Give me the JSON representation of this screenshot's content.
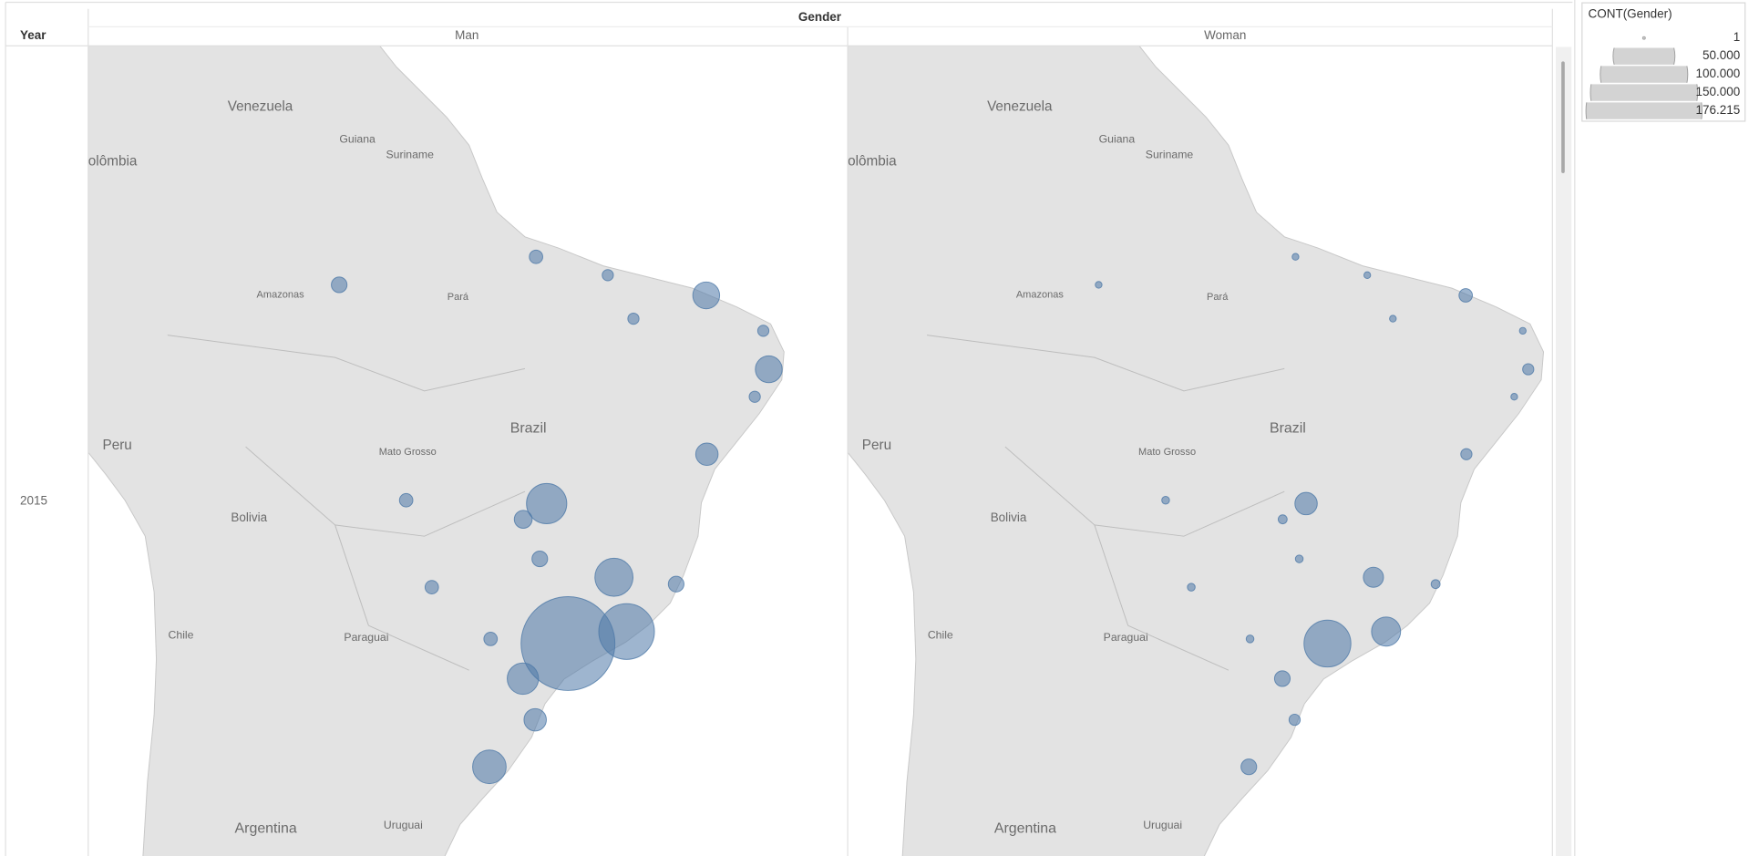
{
  "header": {
    "column_field": "Gender",
    "row_field": "Year",
    "rows": [
      "2015"
    ]
  },
  "chart_data": {
    "type": "bubble_map",
    "color": "#4e79a7",
    "map_labels": [
      "Venezuela",
      "olômbia",
      "Guiana",
      "Suriname",
      "Amazonas",
      "Pará",
      "Brazil",
      "Peru",
      "Mato Grosso",
      "Bolivia",
      "Chile",
      "Paraguai",
      "Argentina",
      "Uruguai"
    ],
    "series": [
      {
        "name": "Man",
        "lon": [
          -46.63,
          -43.2,
          -43.94,
          -47.88,
          -49.25,
          -38.54,
          -34.88,
          -38.5,
          -49.27,
          -51.23,
          -48.55,
          -60.02,
          -48.5,
          -54.6,
          -56.1,
          -40.3,
          -48.28,
          -35.2,
          -44.3,
          -42.8,
          -51.16,
          -35.7
        ],
        "lat": [
          -23.55,
          -22.9,
          -19.92,
          -15.79,
          -16.68,
          -3.72,
          -8.05,
          -12.97,
          -25.43,
          -30.03,
          -27.6,
          -3.1,
          -1.45,
          -20.47,
          -15.6,
          -20.3,
          -18.9,
          -5.8,
          -2.53,
          -5.09,
          -23.3,
          -9.65
        ],
        "values": [
          176215,
          62000,
          29000,
          32500,
          6400,
          14400,
          14400,
          10000,
          19600,
          22500,
          10000,
          4900,
          3600,
          3600,
          3600,
          4900,
          4900,
          2500,
          2500,
          2500,
          3600,
          2500
        ]
      },
      {
        "name": "Woman",
        "lon": [
          -46.63,
          -43.2,
          -43.94,
          -47.88,
          -49.25,
          -38.54,
          -34.88,
          -38.5,
          -49.27,
          -51.23,
          -48.55,
          -60.02,
          -48.5,
          -54.6,
          -56.1,
          -40.3,
          -48.28,
          -35.2,
          -44.3,
          -42.8,
          -51.16,
          -35.7
        ],
        "lat": [
          -23.55,
          -22.9,
          -19.92,
          -15.79,
          -16.68,
          -3.72,
          -8.05,
          -12.97,
          -25.43,
          -30.03,
          -27.6,
          -3.1,
          -1.45,
          -20.47,
          -15.6,
          -20.3,
          -18.9,
          -5.8,
          -2.53,
          -5.09,
          -23.3,
          -9.65
        ],
        "values": [
          44000,
          16900,
          8100,
          10000,
          1600,
          3600,
          2500,
          2500,
          4900,
          4900,
          2500,
          900,
          900,
          1200,
          1200,
          1600,
          1200,
          900,
          900,
          900,
          1200,
          900
        ]
      }
    ],
    "size_legend": {
      "title": "CONT(Gender)",
      "ticks": [
        1,
        {
          "value": 50000,
          "label": "50.000"
        },
        {
          "value": 100000,
          "label": "100.000"
        },
        {
          "value": 150000,
          "label": "150.000"
        },
        {
          "value": 176215,
          "label": "176.215"
        }
      ]
    }
  }
}
